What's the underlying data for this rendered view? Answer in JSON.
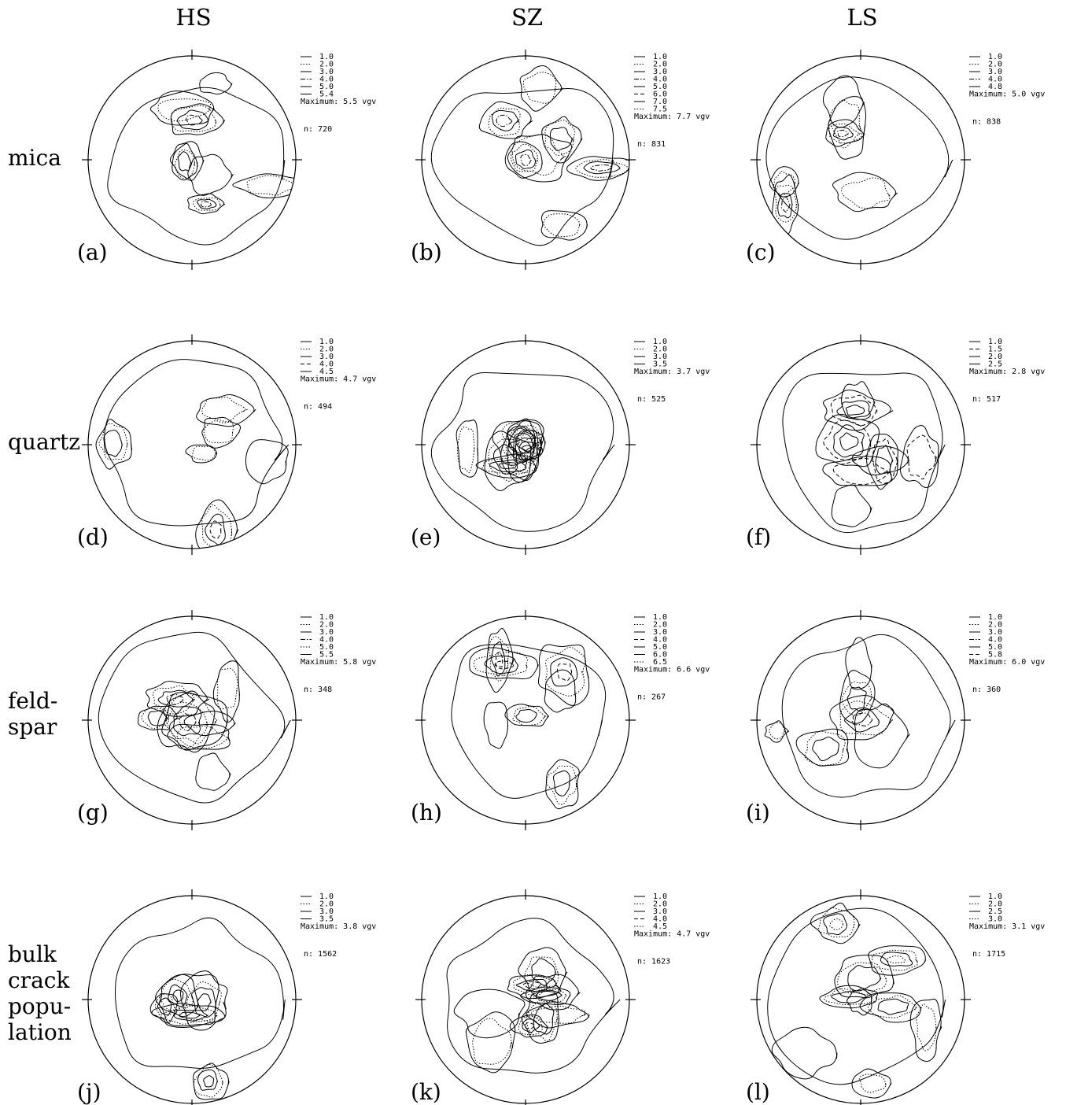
{
  "figure": {
    "columns": [
      "HS",
      "SZ",
      "LS"
    ],
    "rows": [
      {
        "label_lines": [
          "mica"
        ]
      },
      {
        "label_lines": [
          "quartz"
        ]
      },
      {
        "label_lines": [
          "feld-",
          "spar"
        ]
      },
      {
        "label_lines": [
          "bulk",
          "crack",
          "popu-",
          "lation"
        ]
      }
    ],
    "panels": [
      {
        "letter": "(a)",
        "levels": [
          "1.0",
          "2.0",
          "3.0",
          "4.0",
          "5.0",
          "5.4"
        ],
        "styles": [
          "solid",
          "dotted",
          "solid",
          "dashdot",
          "solid",
          "solid"
        ],
        "maximum": "Maximum: 5.5 vgv",
        "n": "n:   720"
      },
      {
        "letter": "(b)",
        "levels": [
          "1.0",
          "2.0",
          "3.0",
          "4.0",
          "5.0",
          "6.0",
          "7.0",
          "7.5"
        ],
        "styles": [
          "solid",
          "dotted",
          "solid",
          "dashdot",
          "solid",
          "dashed",
          "solid",
          "dotted"
        ],
        "maximum": "Maximum: 7.7 vgv",
        "n": "n:   831"
      },
      {
        "letter": "(c)",
        "levels": [
          "1.0",
          "2.0",
          "3.0",
          "4.0",
          "4.8"
        ],
        "styles": [
          "solid",
          "dotted",
          "solid",
          "dashdot",
          "solid"
        ],
        "maximum": "Maximum: 5.0 vgv",
        "n": "n:   838"
      },
      {
        "letter": "(d)",
        "levels": [
          "1.0",
          "2.0",
          "3.0",
          "4.0",
          "4.5"
        ],
        "styles": [
          "solid",
          "dotted",
          "solid",
          "dashed",
          "solid"
        ],
        "maximum": "Maximum: 4.7 vgv",
        "n": "n:   494"
      },
      {
        "letter": "(e)",
        "levels": [
          "1.0",
          "2.0",
          "3.0",
          "3.5"
        ],
        "styles": [
          "solid",
          "dotted",
          "solid",
          "solid"
        ],
        "maximum": "Maximum: 3.7 vgv",
        "n": "n:   525"
      },
      {
        "letter": "(f)",
        "levels": [
          "1.0",
          "1.5",
          "2.0",
          "2.5"
        ],
        "styles": [
          "solid",
          "dashed",
          "solid",
          "solid"
        ],
        "maximum": "Maximum: 2.8 vgv",
        "n": "n:   517"
      },
      {
        "letter": "(g)",
        "levels": [
          "1.0",
          "2.0",
          "3.0",
          "4.0",
          "5.0",
          "5.5"
        ],
        "styles": [
          "solid",
          "dotted",
          "solid",
          "dashdot",
          "dotted",
          "solid"
        ],
        "maximum": "Maximum: 5.8 vgv",
        "n": "n:   348"
      },
      {
        "letter": "(h)",
        "levels": [
          "1.0",
          "2.0",
          "3.0",
          "4.0",
          "5.0",
          "6.0",
          "6.5"
        ],
        "styles": [
          "solid",
          "dotted",
          "solid",
          "dashed",
          "solid",
          "solid",
          "dotted"
        ],
        "maximum": "Maximum: 6.6 vgv",
        "n": "n:   267"
      },
      {
        "letter": "(i)",
        "levels": [
          "1.0",
          "2.0",
          "3.0",
          "4.0",
          "5.0",
          "5.8"
        ],
        "styles": [
          "solid",
          "dotted",
          "solid",
          "dashdot",
          "solid",
          "dashed"
        ],
        "maximum": "Maximum: 6.0 vgv",
        "n": "n:   360"
      },
      {
        "letter": "(j)",
        "levels": [
          "1.0",
          "2.0",
          "3.0",
          "3.5"
        ],
        "styles": [
          "solid",
          "dotted",
          "solid",
          "solid"
        ],
        "maximum": "Maximum: 3.8 vgv",
        "n": "n:   1562"
      },
      {
        "letter": "(k)",
        "levels": [
          "1.0",
          "2.0",
          "3.0",
          "4.0",
          "4.5"
        ],
        "styles": [
          "solid",
          "dotted",
          "solid",
          "dashed",
          "dotted"
        ],
        "maximum": "Maximum: 4.7 vgv",
        "n": "n:   1623"
      },
      {
        "letter": "(l)",
        "levels": [
          "1.0",
          "2.0",
          "2.5",
          "3.0"
        ],
        "styles": [
          "solid",
          "dotted",
          "solid",
          "dotted"
        ],
        "maximum": "Maximum: 3.1 vgv",
        "n": "n:   1715"
      }
    ]
  }
}
